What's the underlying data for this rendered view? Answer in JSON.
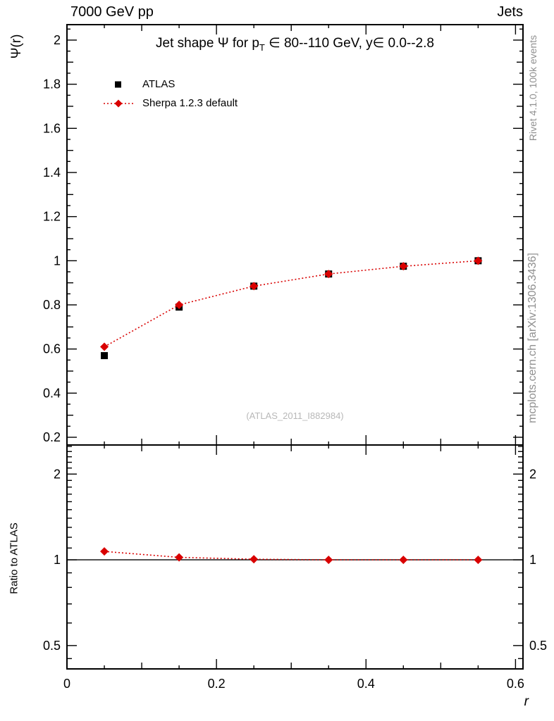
{
  "header": {
    "left_label": "7000 GeV pp",
    "right_label": "Jets"
  },
  "side_labels": {
    "rivet": "Rivet 4.1.0,  100k events",
    "mcplots": "mcplots.cern.ch [arXiv:1306.3436]"
  },
  "top_panel": {
    "ylabel": "Ψ(r)",
    "title_pre": "Jet shape Ψ for p",
    "title_sub": "T",
    "title_post": " ∈ 80--110 GeV, y∈ 0.0--2.8",
    "watermark": "(ATLAS_2011_I882984)",
    "legend": {
      "atlas_label": "ATLAS",
      "sherpa_label": "Sherpa 1.2.3 default"
    }
  },
  "ratio_panel": {
    "ylabel": "Ratio to ATLAS"
  },
  "x_axis": {
    "label": "r"
  },
  "colors": {
    "atlas": "#000000",
    "sherpa": "#d90000",
    "annotation_gray": "#909090",
    "watermark_gray": "#b8b8b8"
  },
  "chart_data": [
    {
      "type": "scatter",
      "panel": "main",
      "title": "Jet shape Ψ for p_T ∈ 80--110 GeV, y ∈ 0.0--2.8",
      "xlabel": "r",
      "ylabel": "Ψ(r)",
      "xlim": [
        0,
        0.61
      ],
      "ylim": [
        0.165,
        2.07
      ],
      "yscale": "linear",
      "grid": false,
      "legend_position": "top-left",
      "x": [
        0.05,
        0.15,
        0.25,
        0.35,
        0.45,
        0.55
      ],
      "series": [
        {
          "name": "ATLAS",
          "marker": "square",
          "color": "#000000",
          "line": "none",
          "values": [
            0.57,
            0.79,
            0.885,
            0.94,
            0.975,
            1.0
          ],
          "yerr": [
            0.012,
            0.01,
            0.008,
            0.006,
            0.005,
            0.004
          ]
        },
        {
          "name": "Sherpa 1.2.3 default",
          "marker": "diamond",
          "color": "#d90000",
          "line": "dotted",
          "values": [
            0.61,
            0.8,
            0.885,
            0.94,
            0.975,
            1.0
          ],
          "yerr": [
            0.008,
            0.006,
            0.005,
            0.004,
            0.003,
            0.003
          ]
        }
      ],
      "xticks": [
        0,
        0.2,
        0.4,
        0.6
      ],
      "yticks": [
        0.2,
        0.4,
        0.6,
        0.8,
        1,
        1.2,
        1.4,
        1.6,
        1.8,
        2
      ]
    },
    {
      "type": "scatter",
      "panel": "ratio",
      "ylabel": "Ratio to ATLAS",
      "xlim": [
        0,
        0.61
      ],
      "ylim": [
        0.414,
        2.53
      ],
      "yscale": "log",
      "grid": false,
      "reference_line": 1,
      "x": [
        0.05,
        0.15,
        0.25,
        0.35,
        0.45,
        0.55
      ],
      "series": [
        {
          "name": "Sherpa 1.2.3 default",
          "marker": "diamond",
          "color": "#d90000",
          "line": "dotted",
          "values": [
            1.07,
            1.02,
            1.005,
            1.0,
            1.0,
            1.0
          ],
          "yerr": [
            0.012,
            0.01,
            0.008,
            0.007,
            0.006,
            0.005
          ]
        }
      ],
      "xticks": [
        0,
        0.2,
        0.4,
        0.6
      ],
      "yticks": [
        0.5,
        1,
        2
      ],
      "y_minor_ticks": [
        0.45,
        0.6,
        0.7,
        0.8,
        0.9,
        1.1,
        1.2,
        1.3,
        1.4,
        1.5,
        1.6,
        1.7,
        1.8,
        1.9,
        2.1,
        2.2,
        2.3,
        2.4,
        2.5
      ]
    }
  ]
}
